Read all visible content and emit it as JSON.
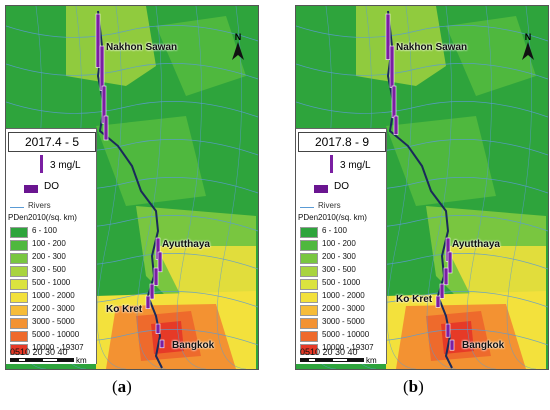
{
  "colors": {
    "bar": "#7a1fa2",
    "do_symbol": "#6a1590",
    "river": "#5a9bd5",
    "main_river": "#1a2a5a"
  },
  "legend": {
    "scale_label": "3 mg/L",
    "do_label": "DO",
    "rivers_label": "Rivers",
    "pden_title": "PDen2010(/sq. km)",
    "classes": [
      {
        "label": "6 - 100",
        "color": "#2ea43c"
      },
      {
        "label": "100 - 200",
        "color": "#4fb83e"
      },
      {
        "label": "200 - 300",
        "color": "#79c640"
      },
      {
        "label": "300 - 500",
        "color": "#a9d43f"
      },
      {
        "label": "500 - 1000",
        "color": "#dbe33f"
      },
      {
        "label": "1000 - 2000",
        "color": "#f3e13c"
      },
      {
        "label": "2000 - 3000",
        "color": "#f6bc38"
      },
      {
        "label": "3000 - 5000",
        "color": "#f39232"
      },
      {
        "label": "5000 - 10000",
        "color": "#ee6a2c"
      },
      {
        "label": "10000 - 19307",
        "color": "#e63a27"
      }
    ]
  },
  "cities": {
    "nakhon_sawan": "Nakhon Sawan",
    "ayutthaya": "Ayutthaya",
    "ko_kret": "Ko Kret",
    "bangkok": "Bangkok"
  },
  "north_label": "N",
  "scalebar": {
    "numbers": "0510 20 30 40",
    "unit": "km"
  },
  "panels": [
    {
      "period": "2017.4 - 5",
      "caption_letter": "a",
      "do_bars_mgL": [
        8.9,
        7.4,
        6.2,
        4.0,
        3.6,
        3.3,
        2.9,
        2.5,
        2.1,
        1.6,
        1.3
      ]
    },
    {
      "period": "2017.8 - 9",
      "caption_letter": "b",
      "do_bars_mgL": [
        7.6,
        6.9,
        5.3,
        3.1,
        3.9,
        3.5,
        2.8,
        2.4,
        1.9,
        2.2,
        1.7
      ]
    }
  ]
}
